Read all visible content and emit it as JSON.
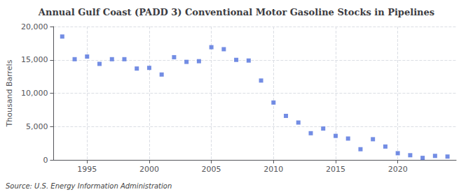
{
  "chart_data": {
    "type": "scatter",
    "title": "Annual Gulf Coast (PADD 3) Conventional Motor Gasoline Stocks in Pipelines",
    "ylabel": "Thousand Barrels",
    "annotation": "Source: U.S. Energy Information Administration",
    "x": [
      1993,
      1994,
      1995,
      1996,
      1997,
      1998,
      1999,
      2000,
      2001,
      2002,
      2003,
      2004,
      2005,
      2006,
      2007,
      2008,
      2009,
      2010,
      2011,
      2012,
      2013,
      2014,
      2015,
      2016,
      2017,
      2018,
      2019,
      2020,
      2021,
      2022,
      2023,
      2024
    ],
    "values": [
      18500,
      15100,
      15500,
      14400,
      15100,
      15100,
      13700,
      13800,
      12800,
      15400,
      14700,
      14800,
      16900,
      16600,
      15000,
      14900,
      11900,
      8600,
      6600,
      5600,
      4000,
      4700,
      3600,
      3200,
      1600,
      3100,
      2000,
      1000,
      700,
      300,
      600,
      500
    ],
    "marker": "square",
    "xlim": [
      1992.3,
      2024.7
    ],
    "xticks": [
      1995,
      2000,
      2005,
      2010,
      2015,
      2020
    ],
    "ylim": [
      0,
      20000
    ],
    "yticks": [
      0,
      {
        "value": 5000,
        "label": "5,000"
      },
      {
        "value": 10000,
        "label": "10,000"
      },
      {
        "value": 15000,
        "label": "15,000"
      },
      {
        "value": 20000,
        "label": "20,000"
      }
    ],
    "grid": true
  }
}
